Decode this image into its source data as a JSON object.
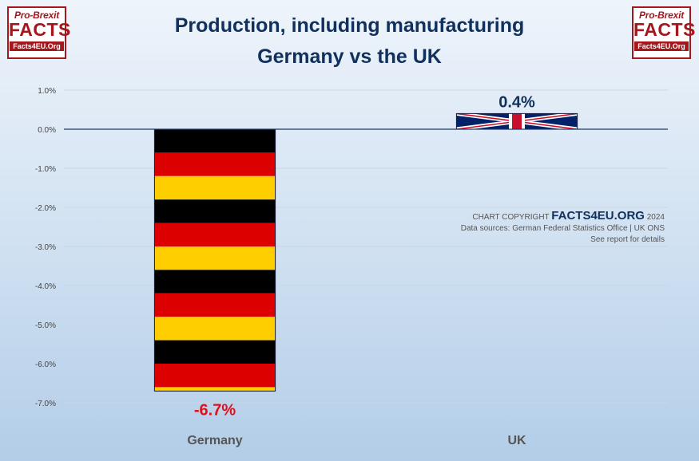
{
  "logo": {
    "top": "Pro-Brexit",
    "main": "FACTS",
    "url": "Facts4EU.Org"
  },
  "title": {
    "line1": "Production, including manufacturing",
    "line2": "Germany vs the UK"
  },
  "copyright": {
    "prefix": "CHART COPYRIGHT",
    "brand": "FACTS4EU.ORG",
    "year": "2024",
    "sources": "Data sources: German Federal Statistics Office | UK ONS",
    "note": "See report for details"
  },
  "colors": {
    "negative_label": "#e0101a",
    "positive_label": "#11305e",
    "title": "#11305e"
  },
  "chart_data": {
    "type": "bar",
    "categories": [
      "Germany",
      "UK"
    ],
    "values": [
      -6.7,
      0.4
    ],
    "data_labels": [
      "-6.7%",
      "0.4%"
    ],
    "bar_fills": [
      "germany-flag",
      "uk-flag"
    ],
    "ylim": [
      -7,
      1
    ],
    "yticks": [
      "1.0%",
      "0.0%",
      "-1.0%",
      "-2.0%",
      "-3.0%",
      "-4.0%",
      "-5.0%",
      "-6.0%",
      "-7.0%"
    ],
    "grid": true,
    "title": "Production, including manufacturing",
    "subtitle": "Germany vs the UK"
  }
}
